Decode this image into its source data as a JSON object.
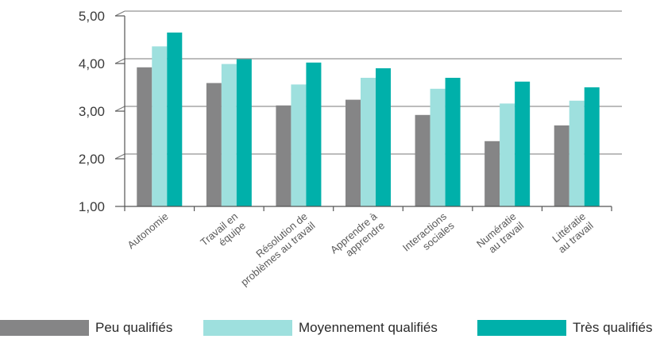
{
  "chart_data": {
    "type": "bar",
    "categories": [
      [
        "Autonomie"
      ],
      [
        "Travail en",
        "équipe"
      ],
      [
        "Résolution de",
        "problèmes au travail"
      ],
      [
        "Apprendre à",
        "apprendre"
      ],
      [
        "Interactions",
        "sociales"
      ],
      [
        "Numératie",
        "au travail"
      ],
      [
        "Littératie",
        "au travail"
      ]
    ],
    "series": [
      {
        "name": "Peu qualifiés",
        "color": "#858586",
        "values": [
          3.92,
          3.59,
          3.12,
          3.24,
          2.92,
          2.37,
          2.7
        ]
      },
      {
        "name": "Moyennement qualifiés",
        "color": "#9ee0de",
        "values": [
          4.36,
          3.99,
          3.56,
          3.7,
          3.47,
          3.16,
          3.22
        ]
      },
      {
        "name": "Très qualifiés",
        "color": "#00b0aa",
        "values": [
          4.65,
          4.09,
          4.02,
          3.9,
          3.7,
          3.62,
          3.5
        ]
      }
    ],
    "yticks": [
      "1,00",
      "2,00",
      "3,00",
      "4,00",
      "5,00"
    ],
    "ylim": [
      1,
      5
    ],
    "grid": true,
    "legend_position": "bottom"
  }
}
